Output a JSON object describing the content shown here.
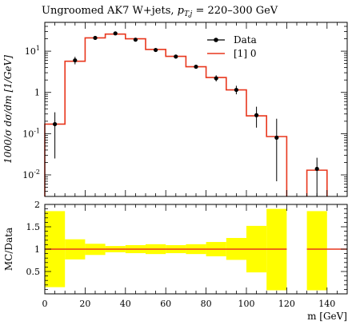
{
  "chart_data": [
    {
      "type": "line",
      "panel": "main",
      "title_prefix": "Ungroomed AK7 W+jets, ",
      "title_math": "p",
      "title_sub": "T,j",
      "title_suffix": " = 220–300 GeV",
      "ylabel": "1000/σ dσ/dm [1/GeV]",
      "yscale": "log",
      "ylim": [
        0.003,
        50
      ],
      "xlim": [
        0,
        150
      ],
      "y_tick_labels": [
        "10^-2",
        "10^-1",
        "1",
        "10^1"
      ],
      "legend_position": "top-right",
      "series": [
        {
          "name": "Data",
          "kind": "points",
          "color": "#000000",
          "x": [
            5,
            15,
            25,
            35,
            45,
            55,
            65,
            75,
            85,
            95,
            105,
            115,
            135
          ],
          "y": [
            0.17,
            6.0,
            21.0,
            27.0,
            19.0,
            10.7,
            7.4,
            4.2,
            2.2,
            1.15,
            0.28,
            0.08,
            0.014
          ],
          "yerr_low": [
            0.145,
            1.2,
            1.5,
            1.8,
            1.4,
            0.8,
            0.6,
            0.4,
            0.35,
            0.25,
            0.14,
            0.073,
            0.0125
          ],
          "yerr_high": [
            0.16,
            1.3,
            1.6,
            1.9,
            1.5,
            0.9,
            0.7,
            0.45,
            0.4,
            0.3,
            0.17,
            0.15,
            0.012
          ]
        },
        {
          "name": "[1] 0",
          "kind": "histogram",
          "color": "#e8371d",
          "bin_edges": [
            0,
            10,
            20,
            30,
            40,
            50,
            60,
            70,
            80,
            90,
            100,
            110,
            120,
            130,
            140
          ],
          "values": [
            0.17,
            5.7,
            21.0,
            26.0,
            20.0,
            11.0,
            7.5,
            4.2,
            2.3,
            1.15,
            0.27,
            0.085,
            null,
            0.013
          ]
        }
      ]
    },
    {
      "type": "area",
      "panel": "ratio",
      "ylabel": "MC/Data",
      "xlabel": "m [GeV]",
      "xlim": [
        0,
        150
      ],
      "ylim": [
        0,
        2
      ],
      "x_ticks": [
        0,
        20,
        40,
        60,
        80,
        100,
        120,
        140
      ],
      "y_ticks": [
        0.5,
        1,
        1.5,
        2
      ],
      "band_color": "#ffff00",
      "ratio_line_color": "#e8371d",
      "band_bins": [
        {
          "x0": 0,
          "x1": 10,
          "lo": 0.15,
          "hi": 1.85
        },
        {
          "x0": 10,
          "x1": 20,
          "lo": 0.77,
          "hi": 1.22
        },
        {
          "x0": 20,
          "x1": 30,
          "lo": 0.87,
          "hi": 1.12
        },
        {
          "x0": 30,
          "x1": 40,
          "lo": 0.93,
          "hi": 1.07
        },
        {
          "x0": 40,
          "x1": 50,
          "lo": 0.91,
          "hi": 1.09
        },
        {
          "x0": 50,
          "x1": 60,
          "lo": 0.89,
          "hi": 1.11
        },
        {
          "x0": 60,
          "x1": 70,
          "lo": 0.91,
          "hi": 1.09
        },
        {
          "x0": 70,
          "x1": 80,
          "lo": 0.89,
          "hi": 1.11
        },
        {
          "x0": 80,
          "x1": 90,
          "lo": 0.84,
          "hi": 1.16
        },
        {
          "x0": 90,
          "x1": 100,
          "lo": 0.76,
          "hi": 1.25
        },
        {
          "x0": 100,
          "x1": 110,
          "lo": 0.48,
          "hi": 1.52
        },
        {
          "x0": 110,
          "x1": 120,
          "lo": 0.08,
          "hi": 1.9
        },
        {
          "x0": 130,
          "x1": 140,
          "lo": 0.08,
          "hi": 1.85
        }
      ],
      "ratio_segments": [
        {
          "x0": 0,
          "x1": 120,
          "y": 1.0
        },
        {
          "x0": 130,
          "x1": 150,
          "y": 1.0
        }
      ]
    }
  ]
}
